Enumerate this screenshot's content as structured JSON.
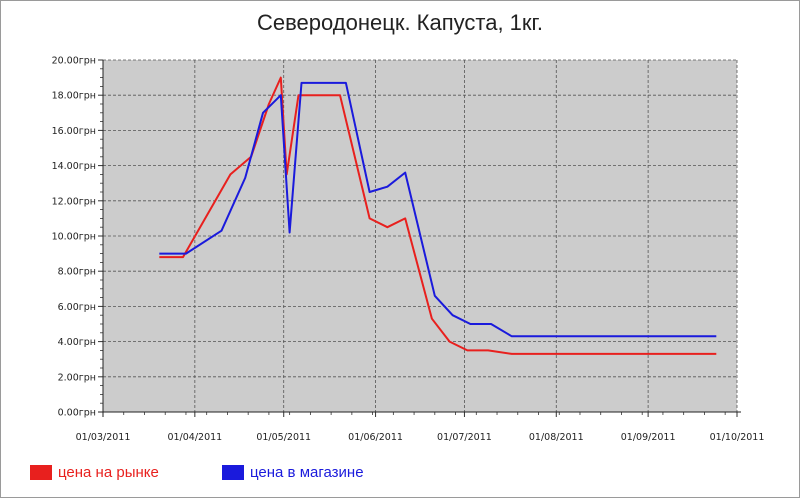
{
  "chart_data": {
    "type": "line",
    "title": "Северодонецк. Капуста, 1кг.",
    "xlabel": "",
    "ylabel": "",
    "x_range": [
      "2011-03-01",
      "2011-10-01"
    ],
    "x_ticks": [
      "01/03/2011",
      "01/04/2011",
      "01/05/2011",
      "01/06/2011",
      "01/07/2011",
      "01/08/2011",
      "01/09/2011",
      "01/10/2011"
    ],
    "ylim": [
      0,
      20
    ],
    "y_ticks": [
      "0.00грн",
      "2.00грн",
      "4.00грн",
      "6.00грн",
      "8.00грн",
      "10.00грн",
      "12.00грн",
      "14.00грн",
      "16.00грн",
      "18.00грн",
      "20.00грн"
    ],
    "grid": true,
    "legend_position": "bottom-left",
    "plot_background": "#cccccc",
    "series": [
      {
        "name": "цена на рынке",
        "color": "#e8201e",
        "points": [
          [
            "2011-03-20",
            8.8
          ],
          [
            "2011-03-28",
            8.8
          ],
          [
            "2011-04-13",
            13.5
          ],
          [
            "2011-04-20",
            14.5
          ],
          [
            "2011-04-26",
            17.5
          ],
          [
            "2011-04-30",
            19.0
          ],
          [
            "2011-05-02",
            13.5
          ],
          [
            "2011-05-06",
            18.0
          ],
          [
            "2011-05-20",
            18.0
          ],
          [
            "2011-05-30",
            11.0
          ],
          [
            "2011-06-05",
            10.5
          ],
          [
            "2011-06-11",
            11.0
          ],
          [
            "2011-06-20",
            5.3
          ],
          [
            "2011-06-26",
            4.0
          ],
          [
            "2011-07-02",
            3.5
          ],
          [
            "2011-07-09",
            3.5
          ],
          [
            "2011-07-17",
            3.3
          ],
          [
            "2011-09-24",
            3.3
          ]
        ]
      },
      {
        "name": "цена в магазине",
        "color": "#1a1adc",
        "points": [
          [
            "2011-03-20",
            9.0
          ],
          [
            "2011-03-29",
            9.0
          ],
          [
            "2011-04-10",
            10.3
          ],
          [
            "2011-04-18",
            13.3
          ],
          [
            "2011-04-24",
            17.0
          ],
          [
            "2011-04-30",
            18.0
          ],
          [
            "2011-05-03",
            10.2
          ],
          [
            "2011-05-07",
            18.7
          ],
          [
            "2011-05-22",
            18.7
          ],
          [
            "2011-05-30",
            12.5
          ],
          [
            "2011-06-05",
            12.8
          ],
          [
            "2011-06-11",
            13.6
          ],
          [
            "2011-06-21",
            6.6
          ],
          [
            "2011-06-27",
            5.5
          ],
          [
            "2011-07-03",
            5.0
          ],
          [
            "2011-07-10",
            5.0
          ],
          [
            "2011-07-17",
            4.3
          ],
          [
            "2011-09-24",
            4.3
          ]
        ]
      }
    ]
  }
}
